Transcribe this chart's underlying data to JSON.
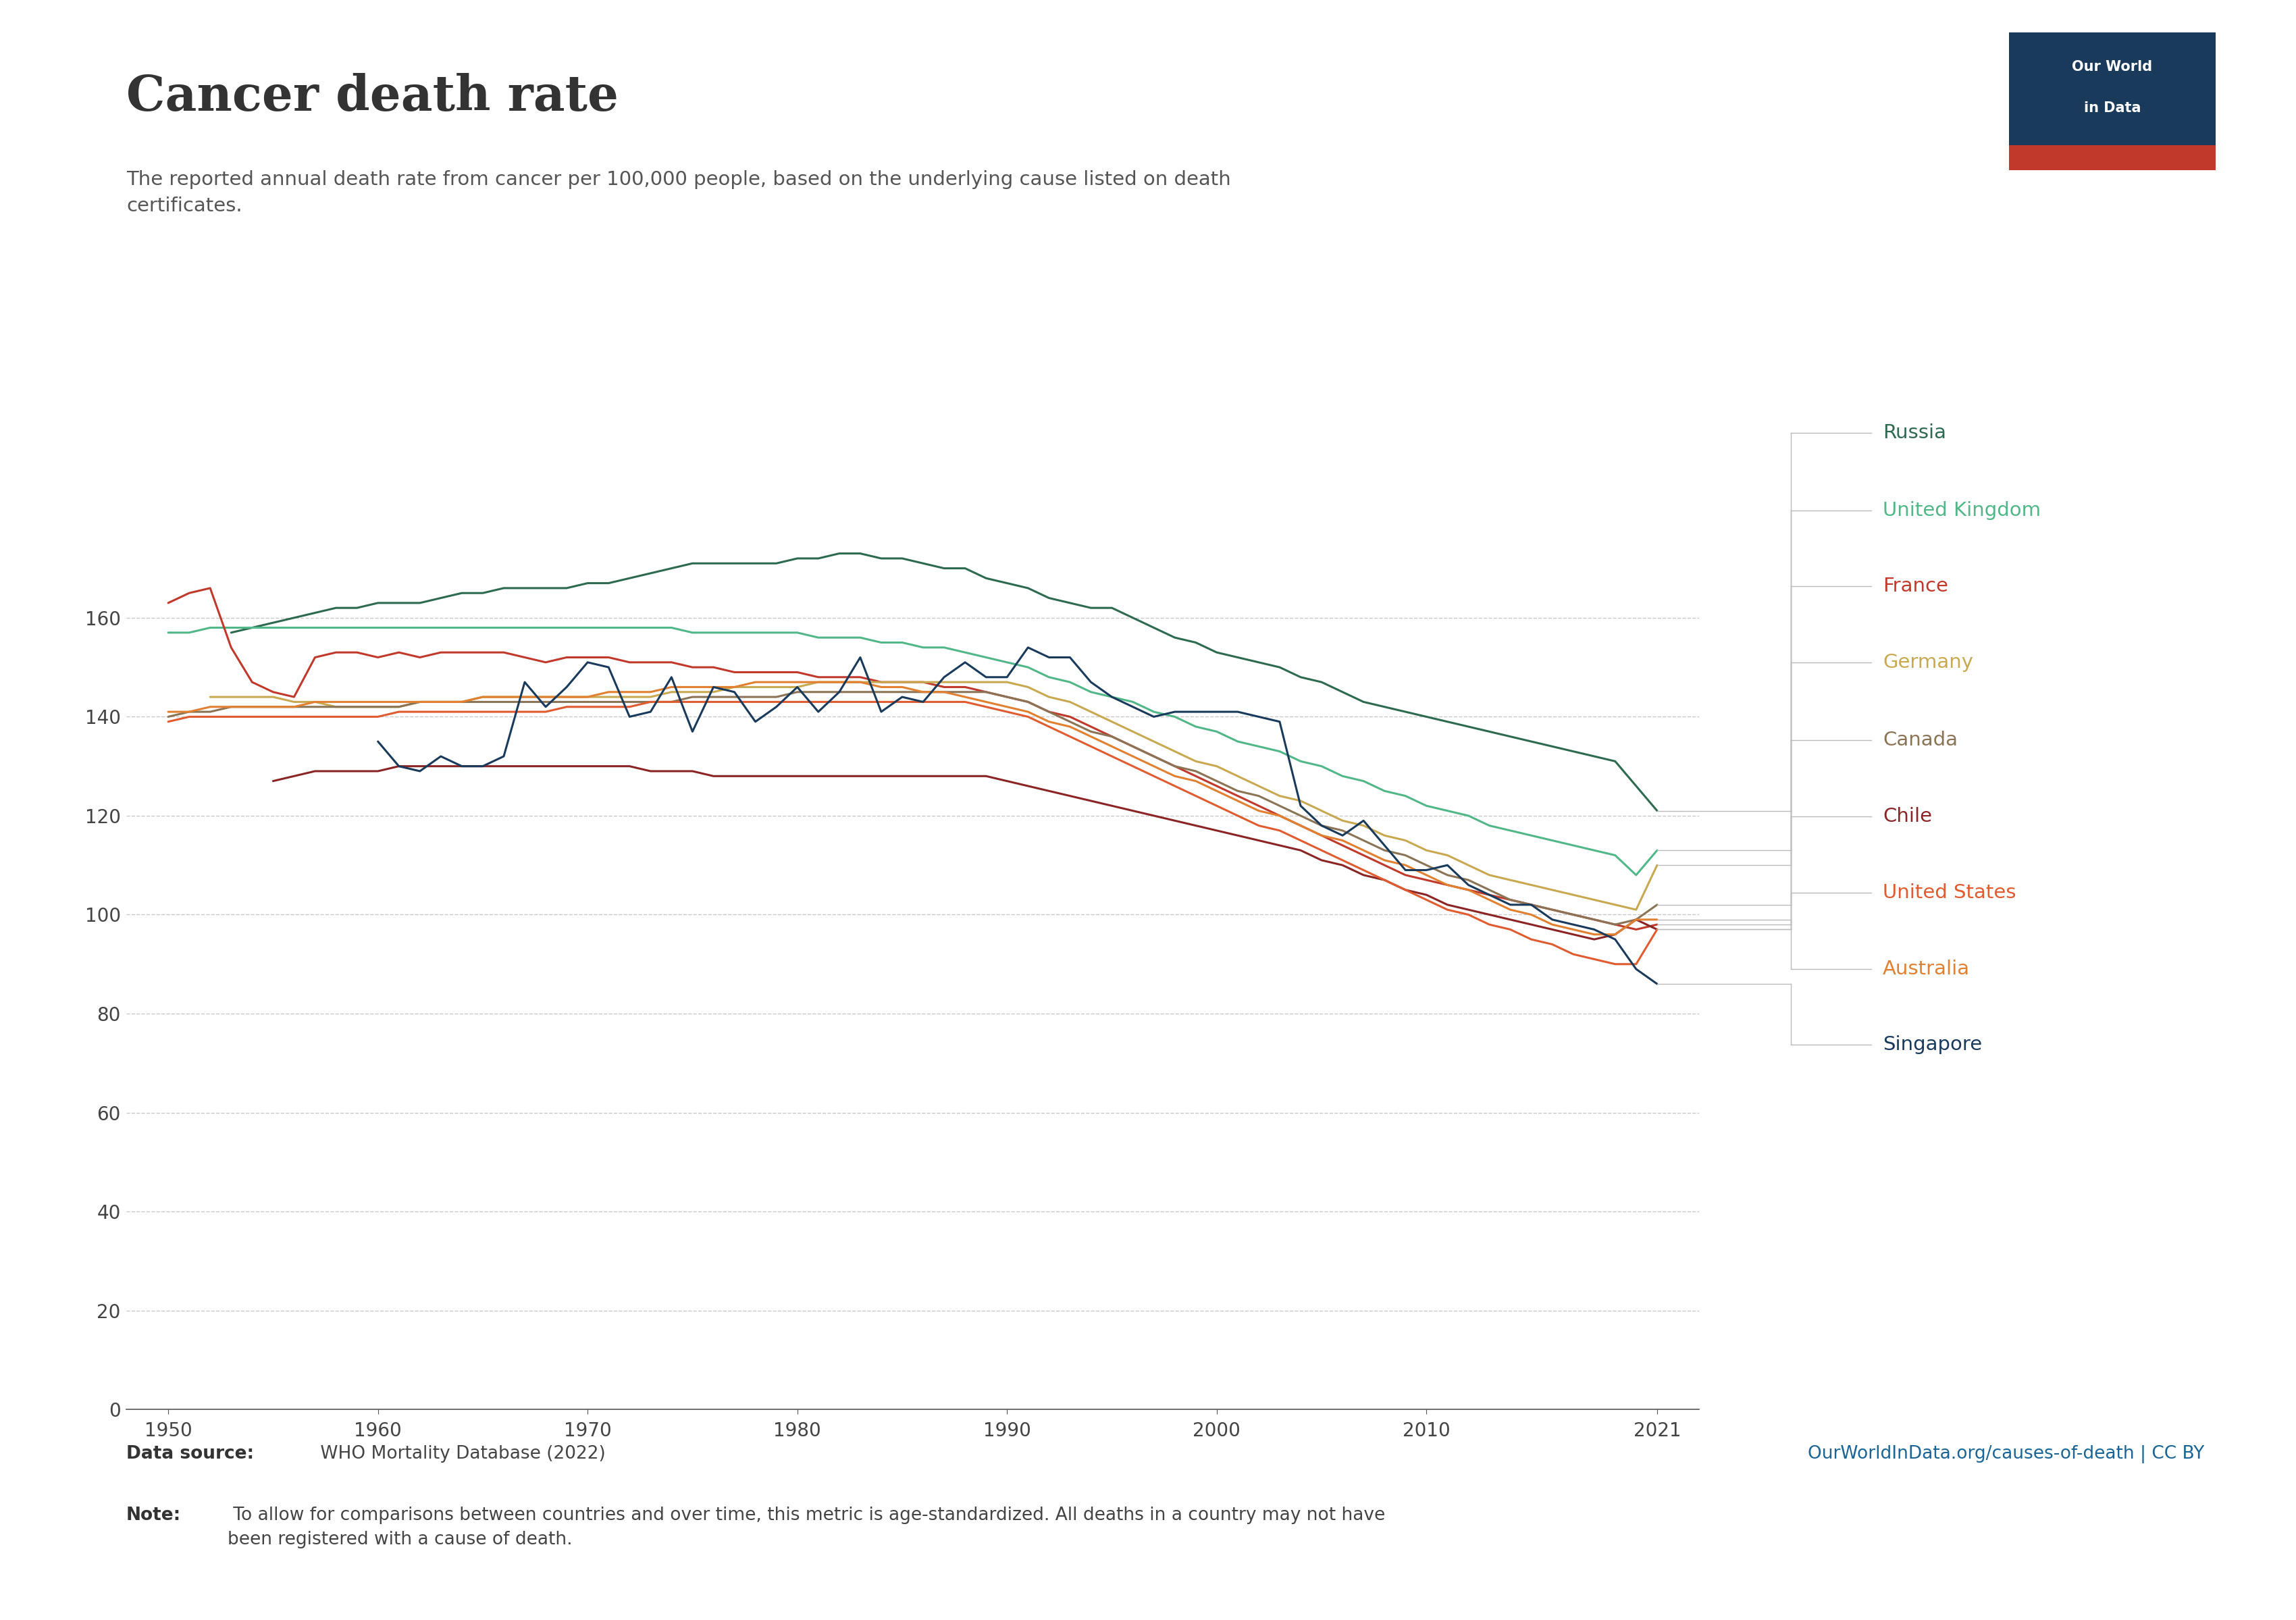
{
  "title": "Cancer death rate",
  "subtitle": "The reported annual death rate from cancer per 100,000 people, based on the underlying cause listed on death\ncertificates.",
  "datasource_bold": "Data source:",
  "datasource_rest": " WHO Mortality Database (2022)",
  "note_bold": "Note:",
  "note_rest": " To allow for comparisons between countries and over time, this metric is age-standardized. All deaths in a country may not have\nbeen registered with a cause of death.",
  "url": "OurWorldInData.org/causes-of-death | CC BY",
  "ylim": [
    0,
    185
  ],
  "yticks": [
    0,
    20,
    40,
    60,
    80,
    100,
    120,
    140,
    160
  ],
  "xlim_left": 1948,
  "xlim_right": 2023,
  "countries": {
    "Russia": {
      "data": {
        "1953": 157,
        "1954": 158,
        "1955": 159,
        "1956": 160,
        "1957": 161,
        "1958": 162,
        "1959": 162,
        "1960": 163,
        "1961": 163,
        "1962": 163,
        "1963": 164,
        "1964": 165,
        "1965": 165,
        "1966": 166,
        "1967": 166,
        "1968": 166,
        "1969": 166,
        "1970": 167,
        "1971": 167,
        "1972": 168,
        "1973": 169,
        "1974": 170,
        "1975": 171,
        "1976": 171,
        "1977": 171,
        "1978": 171,
        "1979": 171,
        "1980": 172,
        "1981": 172,
        "1982": 173,
        "1983": 173,
        "1984": 172,
        "1985": 172,
        "1986": 171,
        "1987": 170,
        "1988": 170,
        "1989": 168,
        "1990": 167,
        "1991": 166,
        "1992": 164,
        "1993": 163,
        "1994": 162,
        "1995": 162,
        "1996": 160,
        "1997": 158,
        "1998": 156,
        "1999": 155,
        "2000": 153,
        "2001": 152,
        "2002": 151,
        "2003": 150,
        "2004": 148,
        "2005": 147,
        "2006": 145,
        "2007": 143,
        "2008": 142,
        "2009": 141,
        "2010": 140,
        "2011": 139,
        "2012": 138,
        "2013": 137,
        "2014": 136,
        "2015": 135,
        "2016": 134,
        "2017": 133,
        "2018": 132,
        "2019": 131,
        "2020": 126,
        "2021": 121
      }
    },
    "United Kingdom": {
      "data": {
        "1950": 157,
        "1951": 157,
        "1952": 158,
        "1953": 158,
        "1954": 158,
        "1955": 158,
        "1956": 158,
        "1957": 158,
        "1958": 158,
        "1959": 158,
        "1960": 158,
        "1961": 158,
        "1962": 158,
        "1963": 158,
        "1964": 158,
        "1965": 158,
        "1966": 158,
        "1967": 158,
        "1968": 158,
        "1969": 158,
        "1970": 158,
        "1971": 158,
        "1972": 158,
        "1973": 158,
        "1974": 158,
        "1975": 157,
        "1976": 157,
        "1977": 157,
        "1978": 157,
        "1979": 157,
        "1980": 157,
        "1981": 156,
        "1982": 156,
        "1983": 156,
        "1984": 155,
        "1985": 155,
        "1986": 154,
        "1987": 154,
        "1988": 153,
        "1989": 152,
        "1990": 151,
        "1991": 150,
        "1992": 148,
        "1993": 147,
        "1994": 145,
        "1995": 144,
        "1996": 143,
        "1997": 141,
        "1998": 140,
        "1999": 138,
        "2000": 137,
        "2001": 135,
        "2002": 134,
        "2003": 133,
        "2004": 131,
        "2005": 130,
        "2006": 128,
        "2007": 127,
        "2008": 125,
        "2009": 124,
        "2010": 122,
        "2011": 121,
        "2012": 120,
        "2013": 118,
        "2014": 117,
        "2015": 116,
        "2016": 115,
        "2017": 114,
        "2018": 113,
        "2019": 112,
        "2020": 108,
        "2021": 113
      }
    },
    "France": {
      "data": {
        "1950": 163,
        "1951": 165,
        "1952": 166,
        "1953": 154,
        "1954": 147,
        "1955": 145,
        "1956": 144,
        "1957": 152,
        "1958": 153,
        "1959": 153,
        "1960": 152,
        "1961": 153,
        "1962": 152,
        "1963": 153,
        "1964": 153,
        "1965": 153,
        "1966": 153,
        "1967": 152,
        "1968": 151,
        "1969": 152,
        "1970": 152,
        "1971": 152,
        "1972": 151,
        "1973": 151,
        "1974": 151,
        "1975": 150,
        "1976": 150,
        "1977": 149,
        "1978": 149,
        "1979": 149,
        "1980": 149,
        "1981": 148,
        "1982": 148,
        "1983": 148,
        "1984": 147,
        "1985": 147,
        "1986": 147,
        "1987": 146,
        "1988": 146,
        "1989": 145,
        "1990": 144,
        "1991": 143,
        "1992": 141,
        "1993": 140,
        "1994": 138,
        "1995": 136,
        "1996": 134,
        "1997": 132,
        "1998": 130,
        "1999": 128,
        "2000": 126,
        "2001": 124,
        "2002": 122,
        "2003": 120,
        "2004": 118,
        "2005": 116,
        "2006": 114,
        "2007": 112,
        "2008": 110,
        "2009": 108,
        "2010": 107,
        "2011": 106,
        "2012": 105,
        "2013": 104,
        "2014": 103,
        "2015": 102,
        "2016": 101,
        "2017": 100,
        "2018": 99,
        "2019": 98,
        "2020": 97,
        "2021": 98
      }
    },
    "Germany": {
      "data": {
        "1952": 144,
        "1953": 144,
        "1954": 144,
        "1955": 144,
        "1956": 143,
        "1957": 143,
        "1958": 142,
        "1959": 142,
        "1960": 142,
        "1961": 142,
        "1962": 143,
        "1963": 143,
        "1964": 143,
        "1965": 144,
        "1966": 144,
        "1967": 144,
        "1968": 144,
        "1969": 144,
        "1970": 144,
        "1971": 144,
        "1972": 144,
        "1973": 144,
        "1974": 145,
        "1975": 145,
        "1976": 145,
        "1977": 146,
        "1978": 146,
        "1979": 146,
        "1980": 146,
        "1981": 147,
        "1982": 147,
        "1983": 147,
        "1984": 147,
        "1985": 147,
        "1986": 147,
        "1987": 147,
        "1988": 147,
        "1989": 147,
        "1990": 147,
        "1991": 146,
        "1992": 144,
        "1993": 143,
        "1994": 141,
        "1995": 139,
        "1996": 137,
        "1997": 135,
        "1998": 133,
        "1999": 131,
        "2000": 130,
        "2001": 128,
        "2002": 126,
        "2003": 124,
        "2004": 123,
        "2005": 121,
        "2006": 119,
        "2007": 118,
        "2008": 116,
        "2009": 115,
        "2010": 113,
        "2011": 112,
        "2012": 110,
        "2013": 108,
        "2014": 107,
        "2015": 106,
        "2016": 105,
        "2017": 104,
        "2018": 103,
        "2019": 102,
        "2020": 101,
        "2021": 110
      }
    },
    "Canada": {
      "data": {
        "1950": 140,
        "1951": 141,
        "1952": 141,
        "1953": 142,
        "1954": 142,
        "1955": 142,
        "1956": 142,
        "1957": 142,
        "1958": 142,
        "1959": 142,
        "1960": 142,
        "1961": 142,
        "1962": 143,
        "1963": 143,
        "1964": 143,
        "1965": 143,
        "1966": 143,
        "1967": 143,
        "1968": 143,
        "1969": 143,
        "1970": 143,
        "1971": 143,
        "1972": 143,
        "1973": 143,
        "1974": 143,
        "1975": 144,
        "1976": 144,
        "1977": 144,
        "1978": 144,
        "1979": 144,
        "1980": 145,
        "1981": 145,
        "1982": 145,
        "1983": 145,
        "1984": 145,
        "1985": 145,
        "1986": 145,
        "1987": 145,
        "1988": 145,
        "1989": 145,
        "1990": 144,
        "1991": 143,
        "1992": 141,
        "1993": 139,
        "1994": 137,
        "1995": 136,
        "1996": 134,
        "1997": 132,
        "1998": 130,
        "1999": 129,
        "2000": 127,
        "2001": 125,
        "2002": 124,
        "2003": 122,
        "2004": 120,
        "2005": 118,
        "2006": 117,
        "2007": 115,
        "2008": 113,
        "2009": 112,
        "2010": 110,
        "2011": 108,
        "2012": 107,
        "2013": 105,
        "2014": 103,
        "2015": 102,
        "2016": 101,
        "2017": 100,
        "2018": 99,
        "2019": 98,
        "2020": 99,
        "2021": 102
      }
    },
    "Chile": {
      "data": {
        "1955": 127,
        "1956": 128,
        "1957": 129,
        "1958": 129,
        "1959": 129,
        "1960": 129,
        "1961": 130,
        "1962": 130,
        "1963": 130,
        "1964": 130,
        "1965": 130,
        "1966": 130,
        "1967": 130,
        "1968": 130,
        "1969": 130,
        "1970": 130,
        "1971": 130,
        "1972": 130,
        "1973": 129,
        "1974": 129,
        "1975": 129,
        "1976": 128,
        "1977": 128,
        "1978": 128,
        "1979": 128,
        "1980": 128,
        "1981": 128,
        "1982": 128,
        "1983": 128,
        "1984": 128,
        "1985": 128,
        "1986": 128,
        "1987": 128,
        "1988": 128,
        "1989": 128,
        "1990": 127,
        "1991": 126,
        "1992": 125,
        "1993": 124,
        "1994": 123,
        "1995": 122,
        "1996": 121,
        "1997": 120,
        "1998": 119,
        "1999": 118,
        "2000": 117,
        "2001": 116,
        "2002": 115,
        "2003": 114,
        "2004": 113,
        "2005": 111,
        "2006": 110,
        "2007": 108,
        "2008": 107,
        "2009": 105,
        "2010": 104,
        "2011": 102,
        "2012": 101,
        "2013": 100,
        "2014": 99,
        "2015": 98,
        "2016": 97,
        "2017": 96,
        "2018": 95,
        "2019": 96,
        "2020": 99,
        "2021": 97
      }
    },
    "United States": {
      "data": {
        "1950": 139,
        "1951": 140,
        "1952": 140,
        "1953": 140,
        "1954": 140,
        "1955": 140,
        "1956": 140,
        "1957": 140,
        "1958": 140,
        "1959": 140,
        "1960": 140,
        "1961": 141,
        "1962": 141,
        "1963": 141,
        "1964": 141,
        "1965": 141,
        "1966": 141,
        "1967": 141,
        "1968": 141,
        "1969": 142,
        "1970": 142,
        "1971": 142,
        "1972": 142,
        "1973": 143,
        "1974": 143,
        "1975": 143,
        "1976": 143,
        "1977": 143,
        "1978": 143,
        "1979": 143,
        "1980": 143,
        "1981": 143,
        "1982": 143,
        "1983": 143,
        "1984": 143,
        "1985": 143,
        "1986": 143,
        "1987": 143,
        "1988": 143,
        "1989": 142,
        "1990": 141,
        "1991": 140,
        "1992": 138,
        "1993": 136,
        "1994": 134,
        "1995": 132,
        "1996": 130,
        "1997": 128,
        "1998": 126,
        "1999": 124,
        "2000": 122,
        "2001": 120,
        "2002": 118,
        "2003": 117,
        "2004": 115,
        "2005": 113,
        "2006": 111,
        "2007": 109,
        "2008": 107,
        "2009": 105,
        "2010": 103,
        "2011": 101,
        "2012": 100,
        "2013": 98,
        "2014": 97,
        "2015": 95,
        "2016": 94,
        "2017": 92,
        "2018": 91,
        "2019": 90,
        "2020": 90,
        "2021": 97
      }
    },
    "Australia": {
      "data": {
        "1950": 141,
        "1951": 141,
        "1952": 142,
        "1953": 142,
        "1954": 142,
        "1955": 142,
        "1956": 142,
        "1957": 143,
        "1958": 143,
        "1959": 143,
        "1960": 143,
        "1961": 143,
        "1962": 143,
        "1963": 143,
        "1964": 143,
        "1965": 144,
        "1966": 144,
        "1967": 144,
        "1968": 144,
        "1969": 144,
        "1970": 144,
        "1971": 145,
        "1972": 145,
        "1973": 145,
        "1974": 146,
        "1975": 146,
        "1976": 146,
        "1977": 146,
        "1978": 147,
        "1979": 147,
        "1980": 147,
        "1981": 147,
        "1982": 147,
        "1983": 147,
        "1984": 146,
        "1985": 146,
        "1986": 145,
        "1987": 145,
        "1988": 144,
        "1989": 143,
        "1990": 142,
        "1991": 141,
        "1992": 139,
        "1993": 138,
        "1994": 136,
        "1995": 134,
        "1996": 132,
        "1997": 130,
        "1998": 128,
        "1999": 127,
        "2000": 125,
        "2001": 123,
        "2002": 121,
        "2003": 120,
        "2004": 118,
        "2005": 116,
        "2006": 115,
        "2007": 113,
        "2008": 111,
        "2009": 110,
        "2010": 108,
        "2011": 106,
        "2012": 105,
        "2013": 103,
        "2014": 101,
        "2015": 100,
        "2016": 98,
        "2017": 97,
        "2018": 96,
        "2019": 96,
        "2020": 99,
        "2021": 99
      }
    },
    "Singapore": {
      "data": {
        "1960": 135,
        "1961": 130,
        "1962": 129,
        "1963": 132,
        "1964": 130,
        "1965": 130,
        "1966": 132,
        "1967": 147,
        "1968": 142,
        "1969": 146,
        "1970": 151,
        "1971": 150,
        "1972": 140,
        "1973": 141,
        "1974": 148,
        "1975": 137,
        "1976": 146,
        "1977": 145,
        "1978": 139,
        "1979": 142,
        "1980": 146,
        "1981": 141,
        "1982": 145,
        "1983": 152,
        "1984": 141,
        "1985": 144,
        "1986": 143,
        "1987": 148,
        "1988": 151,
        "1989": 148,
        "1990": 148,
        "1991": 154,
        "1992": 152,
        "1993": 152,
        "1994": 147,
        "1995": 144,
        "1996": 142,
        "1997": 140,
        "1998": 141,
        "1999": 141,
        "2000": 141,
        "2001": 141,
        "2002": 140,
        "2003": 139,
        "2004": 122,
        "2005": 118,
        "2006": 116,
        "2007": 119,
        "2008": 114,
        "2009": 109,
        "2010": 109,
        "2011": 110,
        "2012": 106,
        "2013": 104,
        "2014": 102,
        "2015": 102,
        "2016": 99,
        "2017": 98,
        "2018": 97,
        "2019": 95,
        "2020": 89,
        "2021": 86
      }
    }
  },
  "line_colors": {
    "Russia": "#2d6a4f",
    "United Kingdom": "#52b788",
    "France": "#c0392b",
    "Germany": "#c8a951",
    "Canada": "#8B7355",
    "Chile": "#8B2525",
    "United States": "#e05c30",
    "Australia": "#e08030",
    "Singapore": "#1a3a5c"
  },
  "legend_order": [
    "Russia",
    "United Kingdom",
    "France",
    "Germany",
    "Canada",
    "Chile",
    "United States",
    "Australia",
    "Singapore"
  ],
  "background_color": "#ffffff"
}
